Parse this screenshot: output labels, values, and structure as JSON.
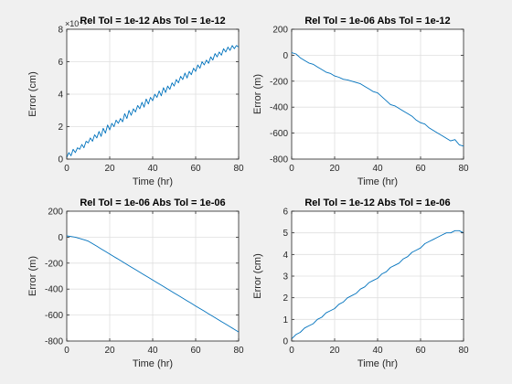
{
  "chart_data": [
    {
      "type": "line",
      "title": "Rel Tol =  1e-12 Abs Tol =  1e-12",
      "xlabel": "Time (hr)",
      "ylabel": "Error (cm)",
      "exponent_label": "×10⁻⁴",
      "xlim": [
        0,
        80
      ],
      "ylim": [
        0,
        8
      ],
      "xticks": [
        0,
        20,
        40,
        60,
        80
      ],
      "yticks": [
        0,
        2,
        4,
        6,
        8
      ],
      "grid": true,
      "series": [
        {
          "color": "#0072bd",
          "x": [
            0,
            1,
            2,
            3,
            4,
            5,
            6,
            7,
            8,
            9,
            10,
            11,
            12,
            13,
            14,
            15,
            16,
            17,
            18,
            19,
            20,
            21,
            22,
            23,
            24,
            25,
            26,
            27,
            28,
            29,
            30,
            31,
            32,
            33,
            34,
            35,
            36,
            37,
            38,
            39,
            40,
            41,
            42,
            43,
            44,
            45,
            46,
            47,
            48,
            49,
            50,
            51,
            52,
            53,
            54,
            55,
            56,
            57,
            58,
            59,
            60,
            61,
            62,
            63,
            64,
            65,
            66,
            67,
            68,
            69,
            70,
            71,
            72,
            73,
            74,
            75,
            76,
            77,
            78,
            79,
            80
          ],
          "y": [
            0.1,
            0.4,
            0.2,
            0.6,
            0.4,
            0.7,
            0.6,
            0.9,
            0.7,
            1.1,
            1.0,
            1.3,
            1.1,
            1.5,
            1.3,
            1.7,
            1.4,
            1.9,
            1.6,
            2.1,
            1.8,
            2.2,
            2.0,
            2.4,
            2.2,
            2.5,
            2.3,
            2.8,
            2.5,
            3.0,
            2.7,
            3.1,
            2.9,
            3.3,
            3.1,
            3.5,
            3.2,
            3.7,
            3.4,
            3.8,
            3.6,
            4.0,
            3.8,
            4.2,
            3.9,
            4.4,
            4.1,
            4.5,
            4.3,
            4.7,
            4.5,
            4.9,
            4.7,
            5.1,
            4.9,
            5.3,
            5.0,
            5.4,
            5.2,
            5.6,
            5.4,
            5.8,
            5.6,
            6.0,
            5.8,
            6.1,
            5.9,
            6.3,
            6.1,
            6.5,
            6.3,
            6.6,
            6.4,
            6.8,
            6.6,
            6.9,
            6.7,
            7.0,
            6.8,
            7.0,
            6.9
          ]
        }
      ]
    },
    {
      "type": "line",
      "title": "Rel Tol =  1e-06 Abs Tol =  1e-12",
      "xlabel": "Time (hr)",
      "ylabel": "Error (m)",
      "xlim": [
        0,
        80
      ],
      "ylim": [
        -800,
        200
      ],
      "xticks": [
        0,
        20,
        40,
        60,
        80
      ],
      "yticks": [
        -800,
        -600,
        -400,
        -200,
        0,
        200
      ],
      "grid": true,
      "series": [
        {
          "color": "#0072bd",
          "x": [
            0,
            2,
            4,
            6,
            8,
            10,
            12,
            14,
            16,
            18,
            20,
            22,
            24,
            26,
            28,
            30,
            32,
            34,
            36,
            38,
            40,
            42,
            44,
            46,
            48,
            50,
            52,
            54,
            56,
            58,
            60,
            62,
            64,
            66,
            68,
            70,
            72,
            74,
            76,
            78,
            80
          ],
          "y": [
            20,
            10,
            -20,
            -40,
            -60,
            -70,
            -90,
            -110,
            -130,
            -140,
            -160,
            -170,
            -185,
            -190,
            -200,
            -210,
            -220,
            -240,
            -260,
            -280,
            -290,
            -320,
            -350,
            -380,
            -390,
            -410,
            -430,
            -450,
            -470,
            -500,
            -520,
            -530,
            -560,
            -580,
            -600,
            -620,
            -640,
            -660,
            -650,
            -690,
            -700
          ]
        }
      ]
    },
    {
      "type": "line",
      "title": "Rel Tol =  1e-06 Abs Tol =  1e-06",
      "xlabel": "Time (hr)",
      "ylabel": "Error (m)",
      "xlim": [
        0,
        80
      ],
      "ylim": [
        -800,
        200
      ],
      "xticks": [
        0,
        20,
        40,
        60,
        80
      ],
      "yticks": [
        -800,
        -600,
        -400,
        -200,
        0,
        200
      ],
      "grid": true,
      "series": [
        {
          "color": "#0072bd",
          "x": [
            0,
            2,
            4,
            6,
            8,
            10,
            12,
            14,
            16,
            18,
            20,
            22,
            24,
            26,
            28,
            30,
            32,
            34,
            36,
            38,
            40,
            42,
            44,
            46,
            48,
            50,
            52,
            54,
            56,
            58,
            60,
            62,
            64,
            66,
            68,
            70,
            72,
            74,
            76,
            78,
            80
          ],
          "y": [
            10,
            5,
            0,
            -10,
            -20,
            -30,
            -50,
            -70,
            -90,
            -110,
            -130,
            -150,
            -170,
            -190,
            -210,
            -230,
            -250,
            -270,
            -290,
            -310,
            -330,
            -350,
            -370,
            -390,
            -410,
            -430,
            -450,
            -470,
            -490,
            -510,
            -530,
            -550,
            -570,
            -590,
            -610,
            -630,
            -650,
            -670,
            -690,
            -710,
            -730
          ]
        }
      ]
    },
    {
      "type": "line",
      "title": "Rel Tol =  1e-12 Abs Tol =  1e-06",
      "xlabel": "Time (hr)",
      "ylabel": "Error (cm)",
      "xlim": [
        0,
        80
      ],
      "ylim": [
        0,
        6
      ],
      "xticks": [
        0,
        20,
        40,
        60,
        80
      ],
      "yticks": [
        0,
        1,
        2,
        3,
        4,
        5,
        6
      ],
      "grid": true,
      "series": [
        {
          "color": "#0072bd",
          "x": [
            0,
            2,
            4,
            6,
            8,
            10,
            12,
            14,
            16,
            18,
            20,
            22,
            24,
            26,
            28,
            30,
            32,
            34,
            36,
            38,
            40,
            42,
            44,
            46,
            48,
            50,
            52,
            54,
            56,
            58,
            60,
            62,
            64,
            66,
            68,
            70,
            72,
            74,
            76,
            78,
            80
          ],
          "y": [
            0.1,
            0.3,
            0.4,
            0.6,
            0.7,
            0.8,
            1.0,
            1.1,
            1.3,
            1.4,
            1.5,
            1.7,
            1.8,
            2.0,
            2.1,
            2.2,
            2.4,
            2.5,
            2.7,
            2.8,
            2.9,
            3.1,
            3.2,
            3.4,
            3.5,
            3.6,
            3.8,
            3.9,
            4.1,
            4.2,
            4.3,
            4.5,
            4.6,
            4.7,
            4.8,
            4.9,
            5.0,
            5.0,
            5.1,
            5.1,
            5.0
          ]
        }
      ]
    }
  ]
}
